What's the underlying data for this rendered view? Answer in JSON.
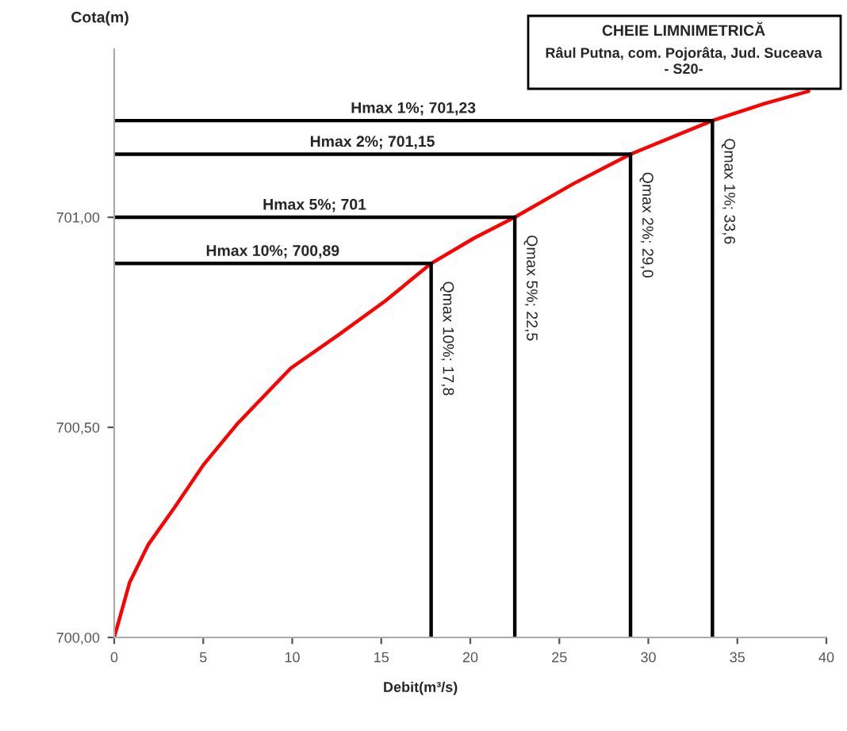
{
  "chart_data": {
    "type": "line",
    "title": "CHEIE LIMNIMETRICĂ",
    "subtitle": "Râul Putna, com. Pojorâta, Jud. Suceava\n- S20-",
    "xlabel": "Debit(m³/s)",
    "ylabel": "Cota(m)",
    "xlim": [
      0,
      40
    ],
    "xticks": [
      0,
      5,
      10,
      15,
      20,
      25,
      30,
      35,
      40
    ],
    "ylim": [
      700,
      701.4
    ],
    "yticks": [
      {
        "value": 700,
        "label": "700,00"
      },
      {
        "value": 700.5,
        "label": "700,50"
      },
      {
        "value": 701,
        "label": "701,00"
      }
    ],
    "grid": false,
    "marker": "none",
    "line_style": "solid",
    "series": [
      {
        "color": "#ff0000",
        "x": [
          0,
          0.4,
          0.86,
          1.9,
          3.4,
          5.0,
          6.95,
          9.9,
          12.6,
          15.2,
          17.8,
          20.2,
          22.5,
          25.8,
          29.0,
          33.6,
          36.5,
          39
        ],
        "values": [
          700,
          700.06,
          700.13,
          700.22,
          700.31,
          700.41,
          700.51,
          700.64,
          700.72,
          700.8,
          700.89,
          700.95,
          701,
          701.08,
          701.15,
          701.23,
          701.27,
          701.3
        ]
      },
      {
        "name": "Hmax 1%; 701,23",
        "color": "#000000",
        "x": [
          0,
          33.6
        ],
        "values": [
          701.23,
          701.23
        ]
      },
      {
        "name": "Hmax 2%; 701,15",
        "color": "#000000",
        "x": [
          0,
          29.0
        ],
        "values": [
          701.15,
          701.15
        ]
      },
      {
        "name": "Hmax 5%; 701",
        "color": "#000000",
        "x": [
          0,
          22.5
        ],
        "values": [
          701,
          701
        ]
      },
      {
        "name": "Hmax 10%; 700,89",
        "color": "#000000",
        "x": [
          0,
          17.8
        ],
        "values": [
          700.89,
          700.89
        ]
      },
      {
        "name": "Qmax 10%; 17,8",
        "color": "#000000",
        "x": [
          17.8,
          17.8
        ],
        "values": [
          700.89,
          700
        ]
      },
      {
        "name": "Qmax 5%; 22,5",
        "color": "#000000",
        "x": [
          22.5,
          22.5
        ],
        "values": [
          701,
          700
        ]
      },
      {
        "name": "Qmax 2%; 29,0",
        "color": "#000000",
        "x": [
          29.0,
          29.0
        ],
        "values": [
          701.15,
          700
        ]
      },
      {
        "name": "Qmax 1%; 33,6",
        "color": "#000000",
        "x": [
          33.6,
          33.6
        ],
        "values": [
          701.23,
          700
        ]
      }
    ]
  }
}
